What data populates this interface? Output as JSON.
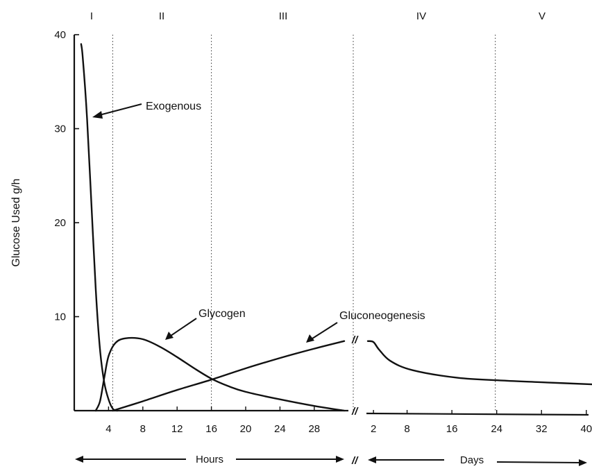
{
  "chart_data": {
    "type": "line",
    "ylabel": "Glucose Used g/h",
    "ylim": [
      0,
      40
    ],
    "y_ticks": [
      "10",
      "20",
      "30",
      "40"
    ],
    "x_segments": [
      {
        "unit": "Hours",
        "range": [
          0,
          32
        ],
        "ticks": [
          "4",
          "8",
          "12",
          "16",
          "20",
          "24",
          "28"
        ]
      },
      {
        "unit": "Days",
        "range": [
          0,
          40
        ],
        "ticks": [
          "2",
          "8",
          "16",
          "24",
          "32",
          "40"
        ]
      }
    ],
    "axis_break_symbol": "//",
    "phases": [
      {
        "label": "I",
        "start_hours": 0
      },
      {
        "label": "II",
        "start_hours": 4
      },
      {
        "label": "III",
        "start_hours": 16
      },
      {
        "label": "IV",
        "start_days": 0
      },
      {
        "label": "V",
        "start_days": 24
      }
    ],
    "series": [
      {
        "name": "Exogenous",
        "points": [
          [
            0.8,
            39
          ],
          [
            1.0,
            37.5
          ],
          [
            1.5,
            31
          ],
          [
            2.0,
            22
          ],
          [
            2.5,
            13
          ],
          [
            3.0,
            6.5
          ],
          [
            3.5,
            3
          ],
          [
            4.0,
            1.2
          ],
          [
            4.5,
            0.2
          ],
          [
            5.0,
            0
          ]
        ]
      },
      {
        "name": "Glycogen",
        "points": [
          [
            2.5,
            0
          ],
          [
            3.0,
            1
          ],
          [
            3.5,
            3.5
          ],
          [
            4.0,
            5.8
          ],
          [
            4.8,
            7.2
          ],
          [
            6.0,
            7.7
          ],
          [
            8.0,
            7.6
          ],
          [
            10.0,
            6.8
          ],
          [
            12.0,
            5.7
          ],
          [
            14.0,
            4.5
          ],
          [
            16.0,
            3.4
          ],
          [
            18.0,
            2.6
          ],
          [
            20.0,
            2.0
          ],
          [
            24.0,
            1.2
          ],
          [
            28.0,
            0.5
          ],
          [
            31.5,
            0
          ]
        ]
      },
      {
        "name": "Gluconeogenesis",
        "hours_points": [
          [
            4.5,
            0
          ],
          [
            8,
            1
          ],
          [
            12,
            2.2
          ],
          [
            16,
            3.3
          ],
          [
            20,
            4.5
          ],
          [
            24,
            5.6
          ],
          [
            28,
            6.6
          ],
          [
            31.5,
            7.4
          ]
        ],
        "days_points": [
          [
            0,
            7.4
          ],
          [
            1,
            7.3
          ],
          [
            2,
            6.5
          ],
          [
            4,
            5.3
          ],
          [
            8,
            4.3
          ],
          [
            16,
            3.5
          ],
          [
            24,
            3.2
          ],
          [
            32,
            3.0
          ],
          [
            40,
            2.8
          ]
        ]
      }
    ],
    "annotations": [
      "Exogenous",
      "Glycogen",
      "Gluconeogenesis"
    ],
    "bottom_labels": {
      "left": "Hours",
      "right": "Days"
    },
    "grid": false,
    "legend": "none"
  }
}
